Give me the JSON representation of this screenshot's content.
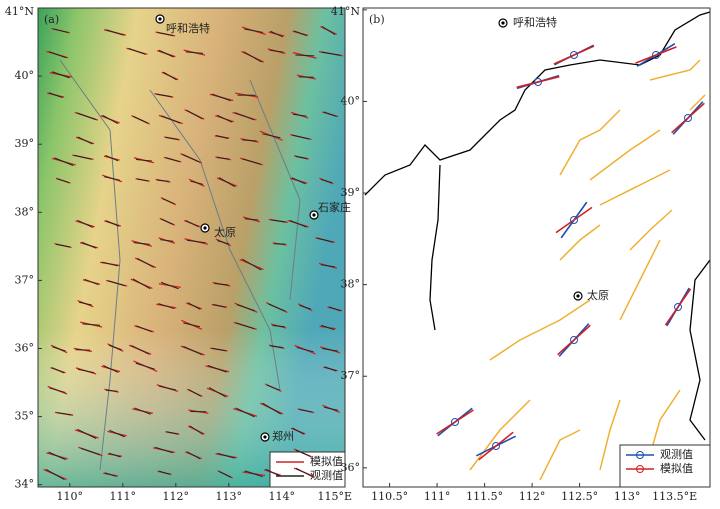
{
  "panels": [
    {
      "label": "(a)",
      "lat_ticks": [
        {
          "value": 41,
          "label": "41°N"
        },
        {
          "value": 40,
          "label": "40°"
        },
        {
          "value": 39,
          "label": "39°"
        },
        {
          "value": 38,
          "label": "38°"
        },
        {
          "value": 37,
          "label": "37°"
        },
        {
          "value": 36,
          "label": "36°"
        },
        {
          "value": 35,
          "label": "35°"
        },
        {
          "value": 34,
          "label": "34°"
        }
      ],
      "lon_ticks": [
        {
          "value": 110,
          "label": "110°"
        },
        {
          "value": 111,
          "label": "111°"
        },
        {
          "value": 112,
          "label": "112°"
        },
        {
          "value": 113,
          "label": "113°"
        },
        {
          "value": 114,
          "label": "114°"
        },
        {
          "value": 115,
          "label": "115°E"
        }
      ],
      "cities": [
        "呼和浩特",
        "太原",
        "石家庄",
        "郑州"
      ],
      "legend": [
        "模拟值",
        "观测值"
      ]
    },
    {
      "label": "(b)",
      "lat_ticks": [
        {
          "value": 41,
          "label": "41°N"
        },
        {
          "value": 40,
          "label": "40°"
        },
        {
          "value": 39,
          "label": "39°"
        },
        {
          "value": 38,
          "label": "38°"
        },
        {
          "value": 37,
          "label": "37°"
        },
        {
          "value": 36,
          "label": "36°"
        }
      ],
      "lon_ticks": [
        {
          "value": 110.5,
          "label": "110.5°"
        },
        {
          "value": 111,
          "label": "111°"
        },
        {
          "value": 111.5,
          "label": "111.5°"
        },
        {
          "value": 112,
          "label": "112°"
        },
        {
          "value": 112.5,
          "label": "112.5°"
        },
        {
          "value": 113,
          "label": "113°"
        },
        {
          "value": 113.5,
          "label": "113.5°E"
        }
      ],
      "cities": [
        "呼和浩特",
        "太原"
      ],
      "legend": [
        "观测值",
        "模拟值"
      ]
    }
  ]
}
